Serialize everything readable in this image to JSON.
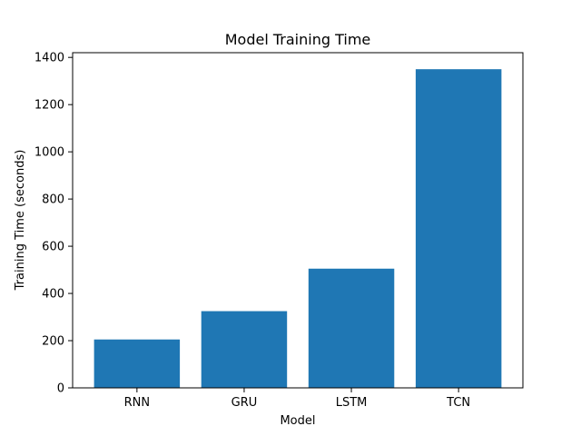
{
  "chart_data": {
    "type": "bar",
    "title": "Model Training Time",
    "xlabel": "Model",
    "ylabel": "Training Time (seconds)",
    "categories": [
      "RNN",
      "GRU",
      "LSTM",
      "TCN"
    ],
    "values": [
      205,
      325,
      505,
      1350
    ],
    "ylim": [
      0,
      1420
    ],
    "yticks": [
      0,
      200,
      400,
      600,
      800,
      1000,
      1200,
      1400
    ],
    "bar_color": "#1f77b4",
    "grid": false,
    "legend": "none"
  }
}
